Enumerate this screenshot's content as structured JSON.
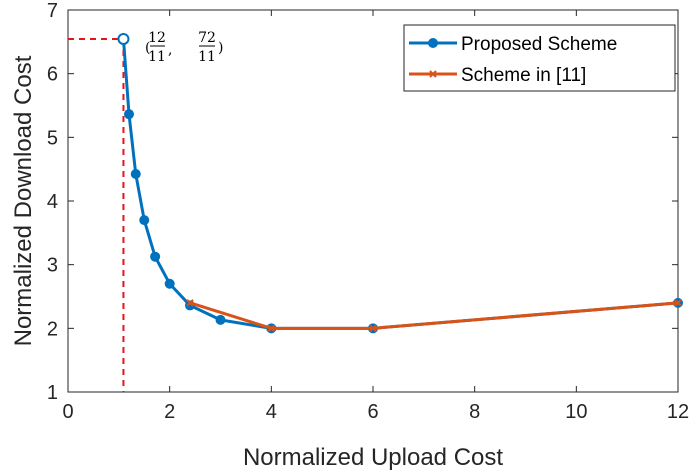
{
  "chart_data": {
    "type": "line",
    "xlabel": "Normalized Upload Cost",
    "ylabel": "Normalized Download Cost",
    "xlim": [
      0,
      12
    ],
    "ylim": [
      1,
      7
    ],
    "xticks": [
      0,
      2,
      4,
      6,
      8,
      10,
      12
    ],
    "yticks": [
      1,
      2,
      3,
      4,
      5,
      6,
      7
    ],
    "grid": false,
    "legend_position": "top-right",
    "series": [
      {
        "name": "Proposed Scheme",
        "color": "#0072BD",
        "marker": "circle",
        "x": [
          1.0909,
          1.2,
          1.333,
          1.5,
          1.714,
          2.0,
          2.4,
          3.0,
          4.0,
          6.0,
          12.0
        ],
        "y": [
          6.545,
          5.364,
          4.424,
          3.7,
          3.125,
          2.7,
          2.36,
          2.133,
          2.0,
          2.0,
          2.4
        ]
      },
      {
        "name": "Scheme in [11]",
        "color": "#D95319",
        "marker": "x",
        "x": [
          2.4,
          4.0,
          6.0,
          12.0
        ],
        "y": [
          2.4,
          2.0,
          2.0,
          2.4
        ]
      }
    ],
    "annotation": {
      "point": [
        1.0909,
        6.545
      ],
      "text_num": [
        "12",
        "72"
      ],
      "text_den": [
        "11",
        "11"
      ],
      "guide_color": "#E8141B"
    }
  }
}
